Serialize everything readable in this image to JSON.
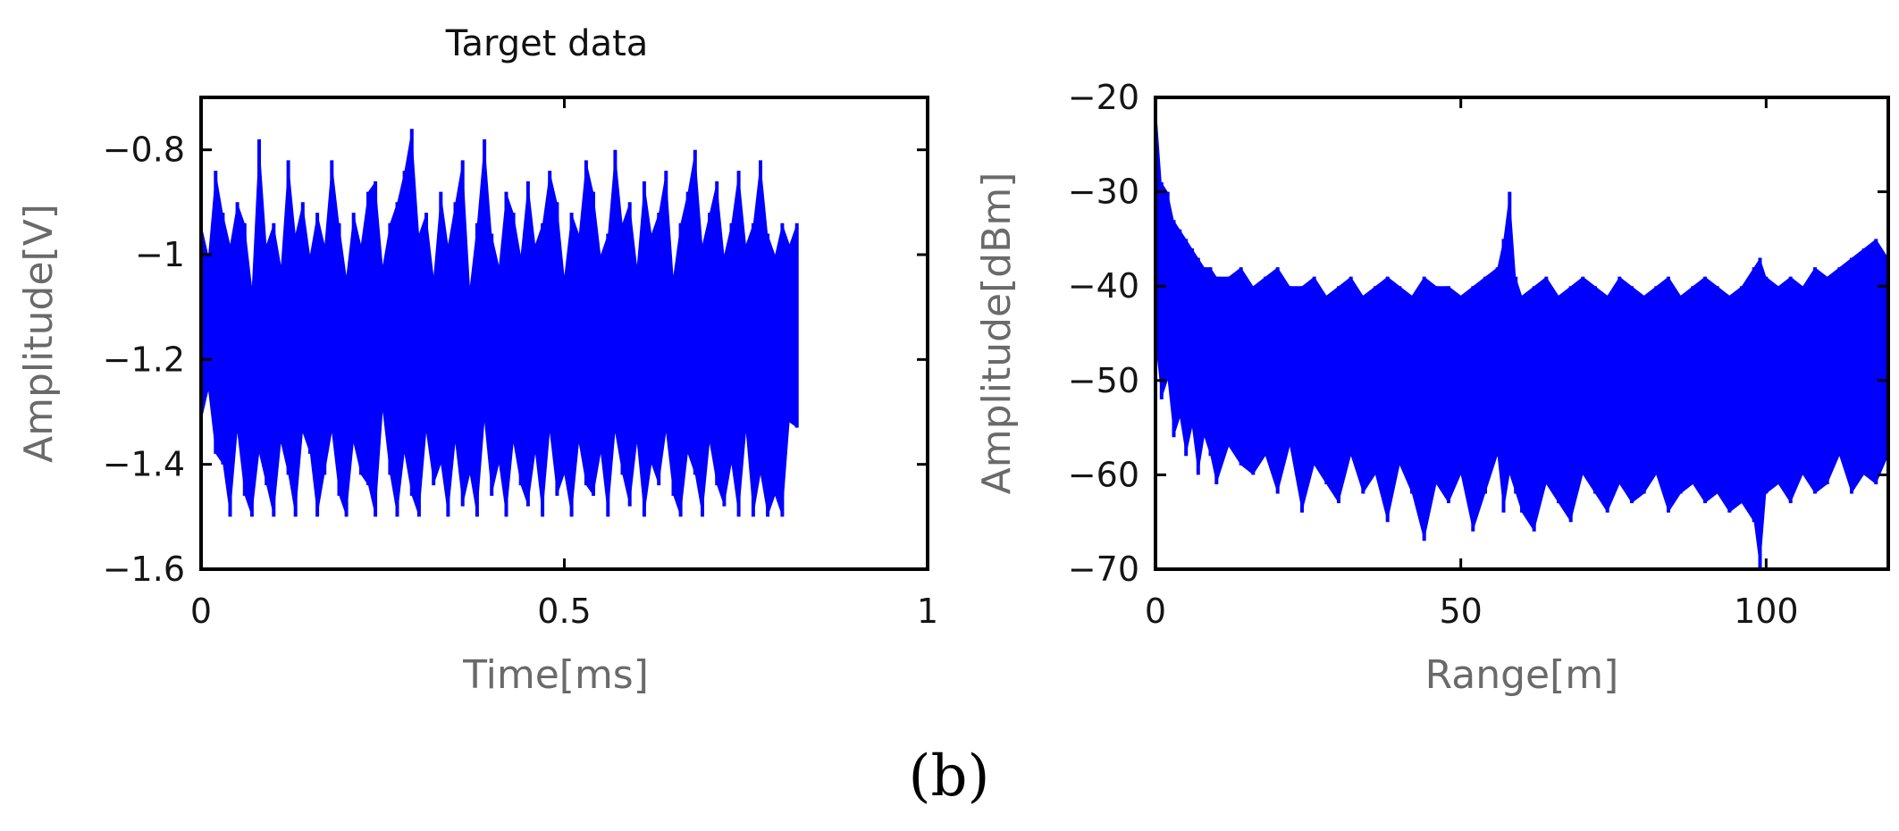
{
  "caption": "(b)",
  "chart_data": [
    {
      "type": "line",
      "title": "Target data",
      "xlabel": "Time[ms]",
      "ylabel": "Amplitude[V]",
      "xlim": [
        0,
        1
      ],
      "ylim": [
        -1.6,
        -0.7
      ],
      "xticks": [
        0,
        0.5,
        1
      ],
      "xtick_labels": [
        "0",
        "0.5",
        "1"
      ],
      "yticks": [
        -1.6,
        -1.4,
        -1.2,
        -1,
        -0.8
      ],
      "ytick_labels": [
        "−1.6",
        "−1.4",
        "−1.2",
        "−1",
        "−0.8"
      ],
      "grid": false,
      "color": "#0000ff",
      "series": [
        {
          "x": [
            0.0,
            0.01,
            0.02,
            0.03,
            0.04,
            0.05,
            0.06,
            0.07,
            0.08,
            0.09,
            0.1,
            0.11,
            0.12,
            0.13,
            0.14,
            0.15,
            0.16,
            0.17,
            0.18,
            0.19,
            0.2,
            0.21,
            0.22,
            0.23,
            0.24,
            0.25,
            0.26,
            0.27,
            0.28,
            0.29,
            0.3,
            0.31,
            0.32,
            0.33,
            0.34,
            0.35,
            0.36,
            0.37,
            0.38,
            0.39,
            0.4,
            0.41,
            0.42,
            0.43,
            0.44,
            0.45,
            0.46,
            0.47,
            0.48,
            0.49,
            0.5,
            0.51,
            0.52,
            0.53,
            0.54,
            0.55,
            0.56,
            0.57,
            0.58,
            0.59,
            0.6,
            0.61,
            0.62,
            0.63,
            0.64,
            0.65,
            0.66,
            0.67,
            0.68,
            0.69,
            0.7,
            0.71,
            0.72,
            0.73,
            0.74,
            0.75,
            0.76,
            0.77,
            0.78,
            0.79,
            0.8,
            0.81,
            0.82
          ],
          "y_max": [
            -0.94,
            -1.0,
            -0.84,
            -0.92,
            -0.98,
            -0.9,
            -0.94,
            -1.06,
            -0.78,
            -0.98,
            -0.94,
            -1.02,
            -0.82,
            -0.96,
            -0.9,
            -1.0,
            -0.92,
            -0.98,
            -0.82,
            -0.94,
            -1.04,
            -0.92,
            -0.98,
            -0.88,
            -0.86,
            -1.02,
            -0.94,
            -0.9,
            -0.84,
            -0.76,
            -0.96,
            -0.92,
            -1.04,
            -0.88,
            -0.98,
            -0.9,
            -0.82,
            -1.06,
            -0.94,
            -0.78,
            -0.96,
            -1.02,
            -0.88,
            -0.92,
            -1.0,
            -0.86,
            -0.98,
            -0.94,
            -0.84,
            -0.9,
            -1.04,
            -0.92,
            -0.96,
            -0.82,
            -0.88,
            -1.0,
            -0.96,
            -0.8,
            -0.94,
            -0.9,
            -1.02,
            -0.86,
            -0.96,
            -0.92,
            -0.84,
            -1.04,
            -0.94,
            -0.88,
            -0.8,
            -0.98,
            -0.92,
            -0.86,
            -1.0,
            -0.94,
            -0.84,
            -0.98,
            -0.94,
            -0.82,
            -0.96,
            -1.0,
            -0.94,
            -0.98,
            -0.94
          ],
          "y_min": [
            -1.32,
            -1.26,
            -1.38,
            -1.4,
            -1.5,
            -1.34,
            -1.46,
            -1.5,
            -1.38,
            -1.44,
            -1.5,
            -1.36,
            -1.42,
            -1.5,
            -1.34,
            -1.38,
            -1.5,
            -1.42,
            -1.34,
            -1.46,
            -1.5,
            -1.36,
            -1.42,
            -1.44,
            -1.5,
            -1.3,
            -1.42,
            -1.5,
            -1.38,
            -1.46,
            -1.5,
            -1.34,
            -1.44,
            -1.4,
            -1.5,
            -1.36,
            -1.48,
            -1.42,
            -1.5,
            -1.32,
            -1.46,
            -1.4,
            -1.5,
            -1.36,
            -1.44,
            -1.48,
            -1.38,
            -1.5,
            -1.34,
            -1.46,
            -1.42,
            -1.5,
            -1.36,
            -1.44,
            -1.46,
            -1.38,
            -1.5,
            -1.34,
            -1.42,
            -1.48,
            -1.36,
            -1.5,
            -1.4,
            -1.44,
            -1.34,
            -1.46,
            -1.5,
            -1.38,
            -1.42,
            -1.5,
            -1.36,
            -1.44,
            -1.48,
            -1.4,
            -1.5,
            -1.34,
            -1.5,
            -1.42,
            -1.5,
            -1.46,
            -1.5,
            -1.32,
            -1.33
          ]
        }
      ]
    },
    {
      "type": "line",
      "xlabel": "Range[m]",
      "ylabel": "Amplitude[dBm]",
      "xlim": [
        0,
        120
      ],
      "ylim": [
        -70,
        -20
      ],
      "xticks": [
        0,
        50,
        100
      ],
      "xtick_labels": [
        "0",
        "50",
        "100"
      ],
      "yticks": [
        -70,
        -60,
        -50,
        -40,
        -30,
        -20
      ],
      "ytick_labels": [
        "−70",
        "−60",
        "−50",
        "−40",
        "−30",
        "−20"
      ],
      "grid": false,
      "color": "#0000ff",
      "series": [
        {
          "x": [
            0,
            1,
            2,
            3,
            4,
            5,
            6,
            7,
            8,
            9,
            10,
            12,
            14,
            16,
            18,
            20,
            22,
            24,
            26,
            28,
            30,
            32,
            34,
            36,
            38,
            40,
            42,
            44,
            46,
            48,
            50,
            52,
            54,
            56,
            57,
            58,
            59,
            60,
            62,
            64,
            66,
            68,
            70,
            72,
            74,
            76,
            78,
            80,
            82,
            84,
            86,
            88,
            90,
            92,
            94,
            96,
            98,
            99,
            100,
            102,
            104,
            106,
            108,
            110,
            112,
            114,
            116,
            118,
            120
          ],
          "y_max": [
            -20,
            -29,
            -30,
            -33,
            -34,
            -35,
            -36,
            -37,
            -38,
            -38,
            -39,
            -39,
            -38,
            -40,
            -39,
            -38,
            -40,
            -40,
            -39,
            -41,
            -40,
            -39,
            -41,
            -40,
            -39,
            -40,
            -41,
            -39,
            -40,
            -40,
            -41,
            -40,
            -39,
            -38,
            -35,
            -30,
            -39,
            -41,
            -40,
            -39,
            -41,
            -40,
            -39,
            -40,
            -41,
            -39,
            -40,
            -41,
            -40,
            -39,
            -41,
            -40,
            -39,
            -40,
            -41,
            -40,
            -38,
            -37,
            -39,
            -40,
            -39,
            -40,
            -38,
            -39,
            -38,
            -37,
            -36,
            -35,
            -37
          ],
          "y_min": [
            -46,
            -52,
            -50,
            -56,
            -54,
            -58,
            -55,
            -60,
            -56,
            -58,
            -61,
            -57,
            -59,
            -60,
            -58,
            -62,
            -57,
            -64,
            -59,
            -61,
            -63,
            -58,
            -62,
            -60,
            -65,
            -59,
            -62,
            -67,
            -61,
            -63,
            -60,
            -66,
            -62,
            -58,
            -64,
            -60,
            -62,
            -64,
            -66,
            -61,
            -63,
            -65,
            -60,
            -62,
            -64,
            -61,
            -63,
            -62,
            -60,
            -64,
            -62,
            -61,
            -63,
            -62,
            -64,
            -63,
            -65,
            -70,
            -62,
            -61,
            -63,
            -60,
            -62,
            -61,
            -58,
            -62,
            -60,
            -61,
            -58
          ]
        }
      ]
    }
  ]
}
